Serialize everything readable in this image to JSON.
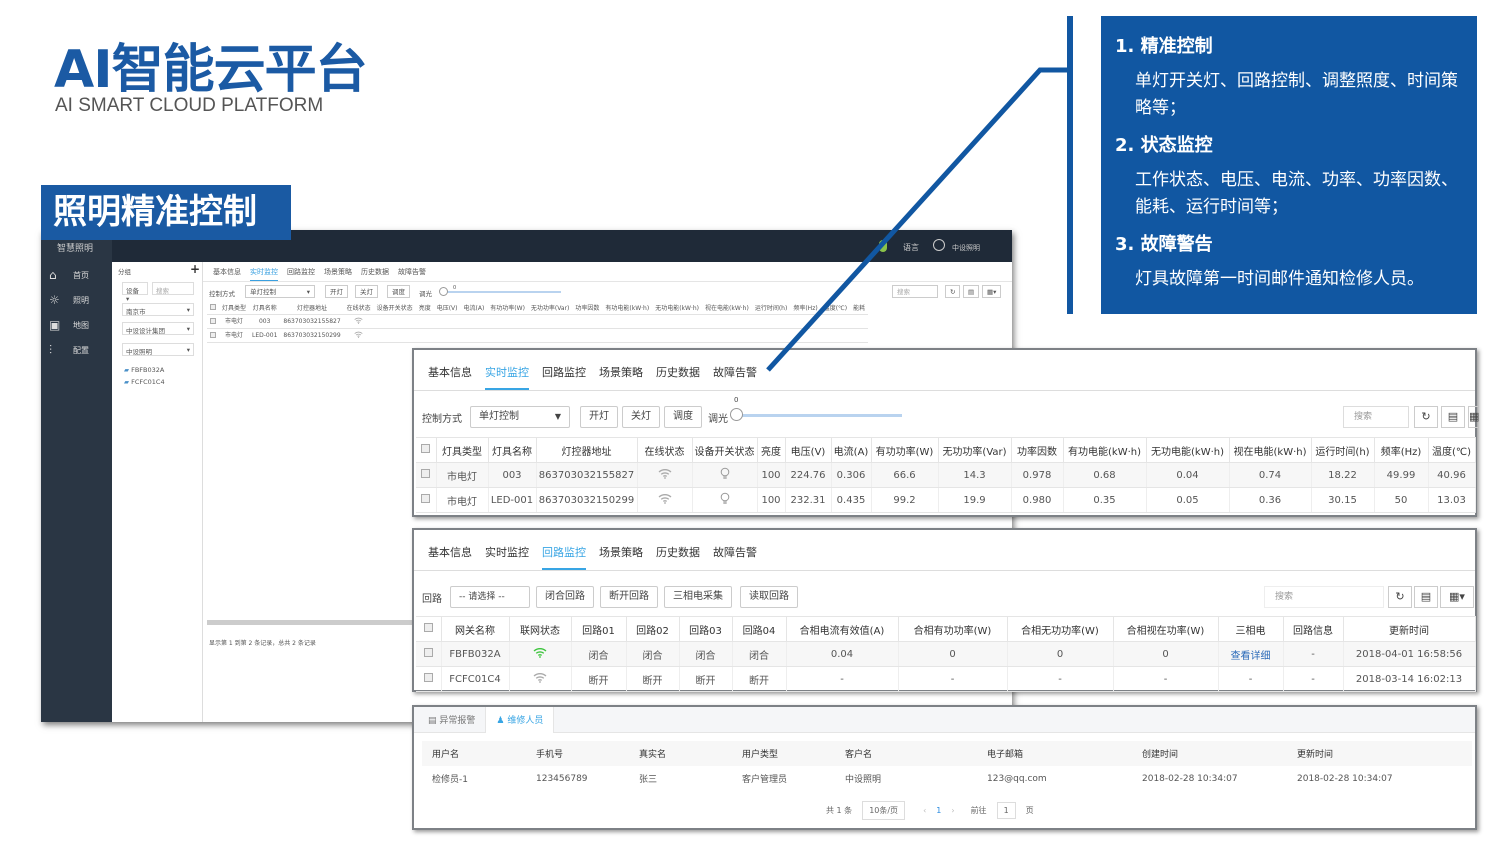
{
  "slide": {
    "title": "AI智能云平台",
    "subtitle": "AI SMART CLOUD PLATFORM",
    "section_label": "照明精准控制",
    "accent_color": "#1157a2",
    "features": [
      {
        "heading": "1. 精准控制",
        "text": "单灯开关灯、回路控制、调整照度、时间策略等；"
      },
      {
        "heading": "2.  状态监控",
        "text": "工作状态、电压、电流、功率、功率因数、能耗、运行时间等；"
      },
      {
        "heading": "3.  故障警告",
        "text": "灯具故障第一时间邮件通知检修人员。"
      }
    ]
  },
  "app": {
    "brand": "智慧照明",
    "header": {
      "language": "语言",
      "user": "中设照明"
    },
    "sidebar": [
      {
        "label": "首页",
        "icon": "home-icon"
      },
      {
        "label": "照明",
        "icon": "sun-icon"
      },
      {
        "label": "地图",
        "icon": "map-icon"
      },
      {
        "label": "配置",
        "icon": "sliders-icon"
      }
    ],
    "tree": {
      "title": "分组",
      "add": "+",
      "filter": "设备",
      "search_placeholder": "搜索",
      "selects": [
        "南京市",
        "中设设计集团",
        "中设照明"
      ],
      "devices": [
        "FBFB032A",
        "FCFC01C4"
      ]
    },
    "tabs": [
      "基本信息",
      "实时监控",
      "回路监控",
      "场景策略",
      "历史数据",
      "故障告警"
    ],
    "active_tab": 1,
    "control_label": "控制方式",
    "control_value": "单灯控制",
    "buttons": [
      "开灯",
      "关灯",
      "调度"
    ],
    "dim_label": "调光",
    "dim_value": "0",
    "search_placeholder": "搜索",
    "columns": [
      "灯具类型",
      "灯具名称",
      "灯控器地址",
      "在线状态",
      "设备开关状态",
      "亮度",
      "电压(V)",
      "电流(A)",
      "有功功率(W)",
      "无功功率(Var)",
      "功率因数",
      "有功电能(kW·h)",
      "无功电能(kW·h)",
      "视在电能(kW·h)",
      "运行时间(h)",
      "频率(Hz)",
      "温度(℃)",
      "能耗"
    ],
    "rows": [
      [
        "市电灯",
        "003",
        "863703032155827"
      ],
      [
        "市电灯",
        "LED-001",
        "863703032150299"
      ]
    ],
    "footer": "显示第 1 到第 2 条记录，总共 2 条记录"
  },
  "panel_realtime": {
    "tabs": [
      "基本信息",
      "实时监控",
      "回路监控",
      "场景策略",
      "历史数据",
      "故障告警"
    ],
    "active_tab": 1,
    "control_label": "控制方式",
    "control_value": "单灯控制",
    "buttons": [
      "开灯",
      "关灯",
      "调度"
    ],
    "dim_label": "调光",
    "dim_value": "0",
    "dim_level": 0,
    "search_placeholder": "搜索",
    "columns": [
      "灯具类型",
      "灯具名称",
      "灯控器地址",
      "在线状态",
      "设备开关状态",
      "亮度",
      "电压(V)",
      "电流(A)",
      "有功功率(W)",
      "无功功率(Var)",
      "功率因数",
      "有功电能(kW·h)",
      "无功电能(kW·h)",
      "视在电能(kW·h)",
      "运行时间(h)",
      "频率(Hz)",
      "温度(℃)"
    ],
    "rows": [
      [
        "市电灯",
        "003",
        "863703032155827",
        {
          "icon": "wifi-icon",
          "state": "offline"
        },
        {
          "icon": "bulb-icon",
          "state": "off"
        },
        "100",
        "224.76",
        "0.306",
        "66.6",
        "14.3",
        "0.978",
        "0.68",
        "0.04",
        "0.74",
        "18.22",
        "49.99",
        "40.96"
      ],
      [
        "市电灯",
        "LED-001",
        "863703032150299",
        {
          "icon": "wifi-icon",
          "state": "offline"
        },
        {
          "icon": "bulb-icon",
          "state": "off"
        },
        "100",
        "232.31",
        "0.435",
        "99.2",
        "19.9",
        "0.980",
        "0.35",
        "0.05",
        "0.36",
        "30.15",
        "50",
        "13.03"
      ]
    ]
  },
  "panel_loop": {
    "tabs": [
      "基本信息",
      "实时监控",
      "回路监控",
      "场景策略",
      "历史数据",
      "故障告警"
    ],
    "active_tab": 2,
    "loop_label": "回路",
    "loop_select": "-- 请选择 --",
    "buttons": [
      "闭合回路",
      "断开回路",
      "三相电采集",
      "读取回路"
    ],
    "search_placeholder": "搜索",
    "columns": [
      "网关名称",
      "联网状态",
      "回路01",
      "回路02",
      "回路03",
      "回路04",
      "合相电流有效值(A)",
      "合相有功功率(W)",
      "合相无功功率(W)",
      "合相视在功率(W)",
      "三相电",
      "回路信息",
      "更新时间"
    ],
    "rows": [
      [
        "FBFB032A",
        {
          "icon": "wifi-icon",
          "state": "online"
        },
        "闭合",
        "闭合",
        "闭合",
        "闭合",
        "0.04",
        "0",
        "0",
        "0",
        {
          "link": "查看详细"
        },
        "-",
        "2018-04-01 16:58:56"
      ],
      [
        "FCFC01C4",
        {
          "icon": "wifi-icon",
          "state": "offline"
        },
        "断开",
        "断开",
        "断开",
        "断开",
        "-",
        "-",
        "-",
        "-",
        "-",
        "-",
        "2018-03-14 16:02:13"
      ]
    ],
    "online_color": "#3cc43c"
  },
  "panel_staff": {
    "tabs": [
      {
        "label": "异常报警",
        "icon": "alarm-icon"
      },
      {
        "label": "维修人员",
        "icon": "user-icon"
      }
    ],
    "active_tab": 1,
    "columns": [
      "用户名",
      "手机号",
      "真实名",
      "用户类型",
      "客户名",
      "电子邮箱",
      "创建时间",
      "更新时间"
    ],
    "rows": [
      [
        "检修员-1",
        "123456789",
        "张三",
        "客户管理员",
        "中设照明",
        "123@qq.com",
        "2018-02-28 10:34:07",
        "2018-02-28 10:34:07"
      ]
    ],
    "pagination": {
      "total": "共 1 条",
      "page_size": "10条/页",
      "prev": "‹",
      "page": "1",
      "next": "›",
      "goto": "前往",
      "goto_value": "1",
      "page_unit": "页"
    }
  }
}
